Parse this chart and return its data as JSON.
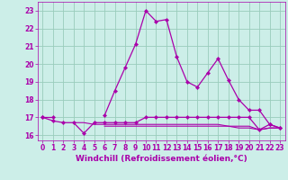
{
  "xlabel": "Windchill (Refroidissement éolien,°C)",
  "x": [
    0,
    1,
    2,
    3,
    4,
    5,
    6,
    7,
    8,
    9,
    10,
    11,
    12,
    13,
    14,
    15,
    16,
    17,
    18,
    19,
    20,
    21,
    22,
    23
  ],
  "lines": [
    {
      "y": [
        17.0,
        17.0,
        null,
        null,
        null,
        null,
        17.1,
        18.5,
        19.8,
        21.1,
        23.0,
        22.4,
        22.5,
        20.4,
        19.0,
        18.7,
        19.5,
        20.3,
        19.1,
        18.0,
        17.4,
        17.4,
        16.6,
        16.4
      ],
      "color": "#aa00aa",
      "lw": 0.9,
      "marker": "D",
      "ms": 2.2
    },
    {
      "y": [
        17.0,
        16.8,
        16.7,
        16.7,
        16.1,
        16.7,
        16.7,
        16.7,
        16.7,
        16.7,
        17.0,
        17.0,
        17.0,
        17.0,
        17.0,
        17.0,
        17.0,
        17.0,
        17.0,
        17.0,
        17.0,
        16.3,
        16.6,
        16.4
      ],
      "color": "#aa00aa",
      "lw": 0.9,
      "marker": "D",
      "ms": 2.2
    },
    {
      "y": [
        null,
        null,
        null,
        16.7,
        16.7,
        16.6,
        16.6,
        16.6,
        16.6,
        16.6,
        16.6,
        16.6,
        16.6,
        16.6,
        16.6,
        16.6,
        16.6,
        16.6,
        16.5,
        16.5,
        16.5,
        16.3,
        16.4,
        16.4
      ],
      "color": "#aa00aa",
      "lw": 0.8,
      "marker": null,
      "ms": 0
    },
    {
      "y": [
        null,
        null,
        null,
        null,
        null,
        null,
        16.5,
        16.5,
        16.5,
        16.5,
        16.5,
        16.5,
        16.5,
        16.5,
        16.5,
        16.5,
        16.5,
        16.5,
        16.5,
        16.4,
        16.4,
        16.3,
        16.4,
        16.4
      ],
      "color": "#aa00aa",
      "lw": 0.8,
      "marker": null,
      "ms": 0
    }
  ],
  "xlim": [
    -0.5,
    23.5
  ],
  "ylim": [
    15.7,
    23.5
  ],
  "yticks": [
    16,
    17,
    18,
    19,
    20,
    21,
    22,
    23
  ],
  "xticks": [
    0,
    1,
    2,
    3,
    4,
    5,
    6,
    7,
    8,
    9,
    10,
    11,
    12,
    13,
    14,
    15,
    16,
    17,
    18,
    19,
    20,
    21,
    22,
    23
  ],
  "bg_color": "#cceee8",
  "grid_color": "#99ccbb",
  "line_color": "#aa00aa",
  "tick_fontsize": 5.5,
  "label_fontsize": 6.5
}
